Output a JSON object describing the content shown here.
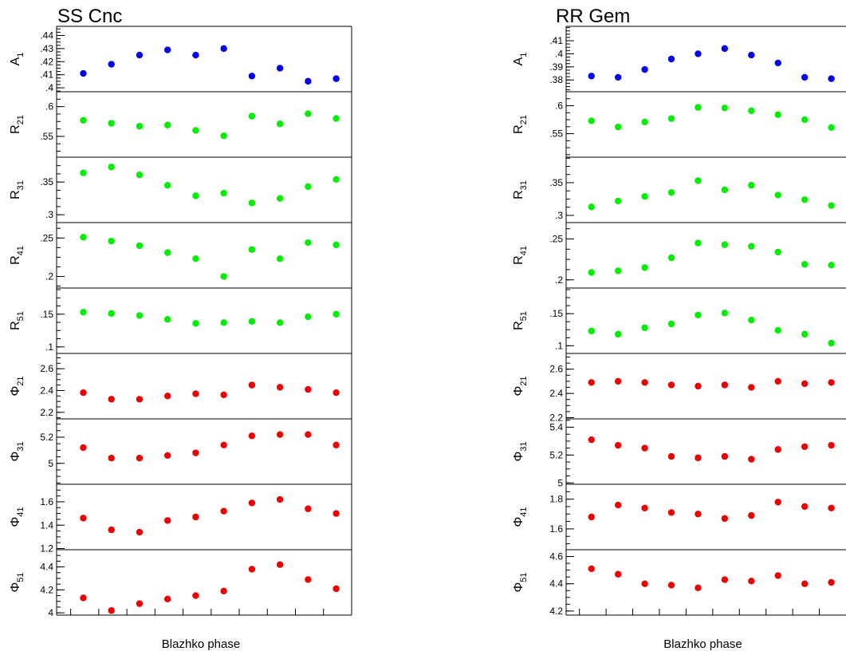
{
  "colors": {
    "blue": "#0000ee",
    "green": "#00ee00",
    "red": "#ee0000",
    "axis": "#000000"
  },
  "chart_data": [
    {
      "type": "scatter",
      "title": "SS Cnc",
      "xlabel": "Blazhko phase",
      "x_points": 10,
      "panels": [
        {
          "label": "A",
          "sub": "1",
          "color": "blue",
          "ylim": [
            0.397,
            0.447
          ],
          "ticks": [
            {
              "v": 0.4,
              "t": ".4"
            },
            {
              "v": 0.41,
              "t": ".41"
            },
            {
              "v": 0.42,
              "t": ".42"
            },
            {
              "v": 0.43,
              "t": ".43"
            },
            {
              "v": 0.44,
              "t": ".44"
            }
          ],
          "values": [
            0.411,
            0.418,
            0.425,
            0.429,
            0.425,
            0.43,
            0.409,
            0.415,
            0.405,
            0.407
          ]
        },
        {
          "label": "R",
          "sub": "21",
          "color": "green",
          "ylim": [
            0.515,
            0.625
          ],
          "ticks": [
            {
              "v": 0.55,
              "t": ".55"
            },
            {
              "v": 0.6,
              "t": ".6"
            }
          ],
          "values": [
            0.577,
            0.572,
            0.567,
            0.569,
            0.56,
            0.551,
            0.584,
            0.571,
            0.588,
            0.58
          ]
        },
        {
          "label": "R",
          "sub": "31",
          "color": "green",
          "ylim": [
            0.288,
            0.388
          ],
          "ticks": [
            {
              "v": 0.3,
              "t": ".3"
            },
            {
              "v": 0.35,
              "t": ".35"
            }
          ],
          "values": [
            0.364,
            0.373,
            0.361,
            0.345,
            0.329,
            0.333,
            0.318,
            0.325,
            0.343,
            0.354
          ]
        },
        {
          "label": "R",
          "sub": "41",
          "color": "green",
          "ylim": [
            0.185,
            0.27
          ],
          "ticks": [
            {
              "v": 0.2,
              "t": ".2"
            },
            {
              "v": 0.25,
              "t": ".25"
            }
          ],
          "values": [
            0.251,
            0.246,
            0.24,
            0.231,
            0.223,
            0.2,
            0.235,
            0.223,
            0.244,
            0.241
          ]
        },
        {
          "label": "R",
          "sub": "51",
          "color": "green",
          "ylim": [
            0.09,
            0.19
          ],
          "ticks": [
            {
              "v": 0.1,
              "t": ".1"
            },
            {
              "v": 0.15,
              "t": ".15"
            }
          ],
          "values": [
            0.153,
            0.151,
            0.148,
            0.142,
            0.136,
            0.137,
            0.139,
            0.137,
            0.146,
            0.15
          ]
        },
        {
          "label": "Φ",
          "sub": "21",
          "color": "red",
          "ylim": [
            2.14,
            2.74
          ],
          "ticks": [
            {
              "v": 2.2,
              "t": "2.2"
            },
            {
              "v": 2.4,
              "t": "2.4"
            },
            {
              "v": 2.6,
              "t": "2.6"
            }
          ],
          "values": [
            2.38,
            2.32,
            2.32,
            2.35,
            2.37,
            2.36,
            2.45,
            2.43,
            2.41,
            2.38
          ]
        },
        {
          "label": "Φ",
          "sub": "31",
          "color": "red",
          "ylim": [
            4.84,
            5.34
          ],
          "ticks": [
            {
              "v": 5.0,
              "t": "5"
            },
            {
              "v": 5.2,
              "t": "5.2"
            }
          ],
          "values": [
            5.12,
            5.04,
            5.04,
            5.06,
            5.08,
            5.14,
            5.21,
            5.22,
            5.22,
            5.14
          ]
        },
        {
          "label": "Φ",
          "sub": "41",
          "color": "red",
          "ylim": [
            1.19,
            1.75
          ],
          "ticks": [
            {
              "v": 1.2,
              "t": "1.2"
            },
            {
              "v": 1.4,
              "t": "1.4"
            },
            {
              "v": 1.6,
              "t": "1.6"
            }
          ],
          "values": [
            1.46,
            1.36,
            1.34,
            1.44,
            1.47,
            1.52,
            1.59,
            1.62,
            1.54,
            1.5
          ]
        },
        {
          "label": "Φ",
          "sub": "51",
          "color": "red",
          "ylim": [
            3.98,
            4.55
          ],
          "ticks": [
            {
              "v": 4.0,
              "t": "4"
            },
            {
              "v": 4.2,
              "t": "4.2"
            },
            {
              "v": 4.4,
              "t": "4.4"
            }
          ],
          "values": [
            4.13,
            4.02,
            4.08,
            4.12,
            4.15,
            4.19,
            4.38,
            4.42,
            4.29,
            4.21
          ]
        }
      ]
    },
    {
      "type": "scatter",
      "title": "RR Gem",
      "xlabel": "Blazhko phase",
      "x_points": 10,
      "panels": [
        {
          "label": "A",
          "sub": "1",
          "color": "blue",
          "ylim": [
            0.371,
            0.421
          ],
          "ticks": [
            {
              "v": 0.38,
              "t": ".38"
            },
            {
              "v": 0.39,
              "t": ".39"
            },
            {
              "v": 0.4,
              "t": ".4"
            },
            {
              "v": 0.41,
              "t": ".41"
            }
          ],
          "values": [
            0.383,
            0.382,
            0.388,
            0.396,
            0.4,
            0.404,
            0.399,
            0.393,
            0.382,
            0.381
          ]
        },
        {
          "label": "R",
          "sub": "21",
          "color": "green",
          "ylim": [
            0.508,
            0.625
          ],
          "ticks": [
            {
              "v": 0.55,
              "t": ".55"
            },
            {
              "v": 0.6,
              "t": ".6"
            }
          ],
          "values": [
            0.573,
            0.562,
            0.571,
            0.577,
            0.597,
            0.596,
            0.591,
            0.584,
            0.575,
            0.561
          ]
        },
        {
          "label": "R",
          "sub": "31",
          "color": "green",
          "ylim": [
            0.289,
            0.389
          ],
          "ticks": [
            {
              "v": 0.3,
              "t": ".3"
            },
            {
              "v": 0.35,
              "t": ".35"
            }
          ],
          "values": [
            0.313,
            0.322,
            0.329,
            0.335,
            0.353,
            0.339,
            0.346,
            0.331,
            0.324,
            0.315
          ]
        },
        {
          "label": "R",
          "sub": "41",
          "color": "green",
          "ylim": [
            0.19,
            0.27
          ],
          "ticks": [
            {
              "v": 0.2,
              "t": ".2"
            },
            {
              "v": 0.25,
              "t": ".25"
            }
          ],
          "values": [
            0.209,
            0.211,
            0.215,
            0.227,
            0.245,
            0.243,
            0.241,
            0.234,
            0.219,
            0.218
          ]
        },
        {
          "label": "R",
          "sub": "51",
          "color": "green",
          "ylim": [
            0.088,
            0.19
          ],
          "ticks": [
            {
              "v": 0.1,
              "t": ".1"
            },
            {
              "v": 0.15,
              "t": ".15"
            }
          ],
          "values": [
            0.123,
            0.118,
            0.128,
            0.134,
            0.148,
            0.151,
            0.14,
            0.124,
            0.118,
            0.104
          ]
        },
        {
          "label": "Φ",
          "sub": "21",
          "color": "red",
          "ylim": [
            2.19,
            2.73
          ],
          "ticks": [
            {
              "v": 2.2,
              "t": "2.2"
            },
            {
              "v": 2.4,
              "t": "2.4"
            },
            {
              "v": 2.6,
              "t": "2.6"
            }
          ],
          "values": [
            2.49,
            2.5,
            2.49,
            2.47,
            2.46,
            2.47,
            2.45,
            2.5,
            2.48,
            2.49
          ]
        },
        {
          "label": "Φ",
          "sub": "31",
          "color": "red",
          "ylim": [
            4.99,
            5.46
          ],
          "ticks": [
            {
              "v": 5.0,
              "t": "5"
            },
            {
              "v": 5.2,
              "t": "5.2"
            },
            {
              "v": 5.4,
              "t": "5.4"
            }
          ],
          "values": [
            5.31,
            5.27,
            5.25,
            5.19,
            5.18,
            5.19,
            5.17,
            5.24,
            5.26,
            5.27
          ]
        },
        {
          "label": "Φ",
          "sub": "41",
          "color": "red",
          "ylim": [
            1.46,
            1.9
          ],
          "ticks": [
            {
              "v": 1.6,
              "t": "1.6"
            },
            {
              "v": 1.8,
              "t": "1.8"
            }
          ],
          "values": [
            1.68,
            1.76,
            1.74,
            1.71,
            1.7,
            1.67,
            1.69,
            1.78,
            1.75,
            1.74
          ]
        },
        {
          "label": "Φ",
          "sub": "51",
          "color": "red",
          "ylim": [
            4.17,
            4.65
          ],
          "ticks": [
            {
              "v": 4.2,
              "t": "4.2"
            },
            {
              "v": 4.4,
              "t": "4.4"
            },
            {
              "v": 4.6,
              "t": "4.6"
            }
          ],
          "values": [
            4.51,
            4.47,
            4.4,
            4.39,
            4.37,
            4.43,
            4.42,
            4.46,
            4.4,
            4.41
          ]
        }
      ]
    }
  ]
}
